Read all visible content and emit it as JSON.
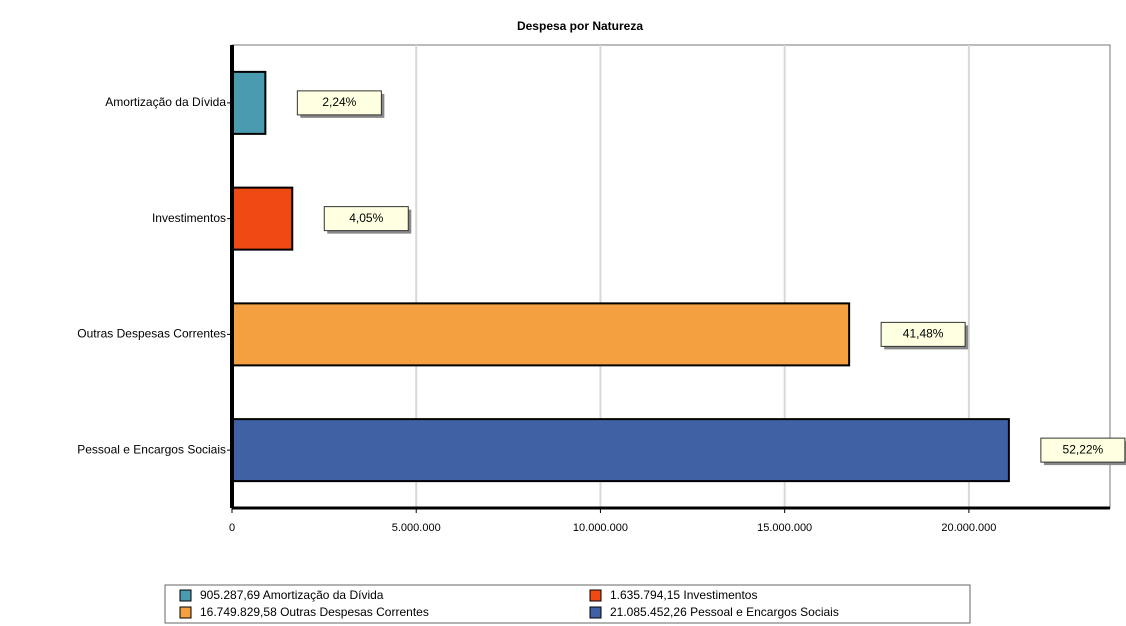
{
  "chart_data": {
    "type": "hbar",
    "title": "Despesa por Natureza",
    "categories": [
      "Amortização da Dívida",
      "Investimentos",
      "Outras Despesas Correntes",
      "Pessoal e Encargos Sociais"
    ],
    "values": [
      905287.69,
      1635794.15,
      16749829.58,
      21085452.26
    ],
    "value_labels": [
      "905.287,69",
      "1.635.794,15",
      "16.749.829,58",
      "21.085.452,26"
    ],
    "shares": [
      2.24,
      4.05,
      41.48,
      52.22
    ],
    "share_labels": [
      "2,24%",
      "4,05%",
      "41,48%",
      "52,22%"
    ],
    "colors": [
      "#4a9bb0",
      "#f04a14",
      "#f4a040",
      "#4062a4"
    ],
    "xlim": [
      0,
      23830000
    ],
    "xticks": [
      0,
      {
        "value": 5000000,
        "label": "5.000.000"
      },
      {
        "value": 10000000,
        "label": "10.000.000"
      },
      {
        "value": 15000000,
        "label": "15.000.000"
      },
      {
        "value": 20000000,
        "label": "20.000.000"
      }
    ],
    "grid": true
  }
}
